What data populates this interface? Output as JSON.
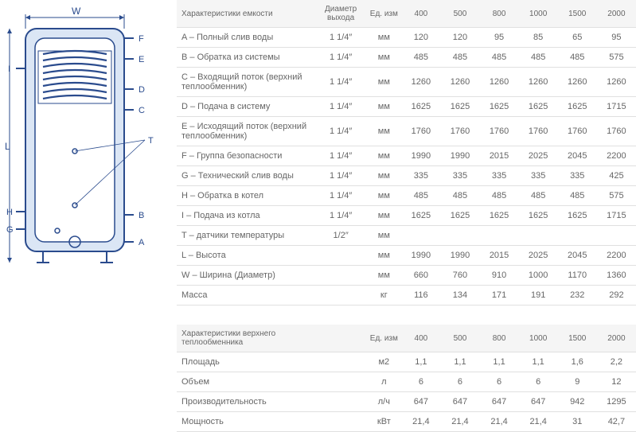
{
  "diagram": {
    "labels": {
      "W": "W",
      "L": "L",
      "F": "F",
      "E": "E",
      "D": "D",
      "C": "C",
      "T": "T",
      "B": "B",
      "A": "A",
      "H": "H",
      "G": "G",
      "I": "I"
    },
    "colors": {
      "stroke": "#2a4b8d",
      "fill_outer": "#dbe6f5",
      "fill_inner": "#ffffff",
      "coil": "#2a4b8d"
    }
  },
  "table1": {
    "headers": [
      "Характеристики емкости",
      "Диаметр выхода",
      "Ед. изм",
      "400",
      "500",
      "800",
      "1000",
      "1500",
      "2000"
    ],
    "rows": [
      [
        "A – Полный слив воды",
        "1 1/4″",
        "мм",
        "120",
        "120",
        "95",
        "85",
        "65",
        "95"
      ],
      [
        "B – Обратка из системы",
        "1 1/4″",
        "мм",
        "485",
        "485",
        "485",
        "485",
        "485",
        "575"
      ],
      [
        "C – Входящий поток (верхний теплообменник)",
        "1 1/4″",
        "мм",
        "1260",
        "1260",
        "1260",
        "1260",
        "1260",
        "1260"
      ],
      [
        "D – Подача в систему",
        "1 1/4″",
        "мм",
        "1625",
        "1625",
        "1625",
        "1625",
        "1625",
        "1715"
      ],
      [
        "E – Исходящий поток (верхний теплообменник)",
        "1 1/4″",
        "мм",
        "1760",
        "1760",
        "1760",
        "1760",
        "1760",
        "1760"
      ],
      [
        "F – Группа безопасности",
        "1 1/4″",
        "мм",
        "1990",
        "1990",
        "2015",
        "2025",
        "2045",
        "2200"
      ],
      [
        "G – Технический слив воды",
        "1 1/4″",
        "мм",
        "335",
        "335",
        "335",
        "335",
        "335",
        "425"
      ],
      [
        "H – Обратка в котел",
        "1 1/4″",
        "мм",
        "485",
        "485",
        "485",
        "485",
        "485",
        "575"
      ],
      [
        "I – Подача из котла",
        "1 1/4″",
        "мм",
        "1625",
        "1625",
        "1625",
        "1625",
        "1625",
        "1715"
      ],
      [
        "T – датчики температуры",
        "1/2″",
        "мм",
        "",
        "",
        "",
        "",
        "",
        ""
      ],
      [
        "L – Высота",
        "",
        "мм",
        "1990",
        "1990",
        "2015",
        "2025",
        "2045",
        "2200"
      ],
      [
        "W – Ширина (Диаметр)",
        "",
        "мм",
        "660",
        "760",
        "910",
        "1000",
        "1170",
        "1360"
      ],
      [
        "Масса",
        "",
        "кг",
        "116",
        "134",
        "171",
        "191",
        "232",
        "292"
      ]
    ]
  },
  "table2": {
    "headers": [
      "Характеристики верхнего теплообменника",
      "",
      "Ед. изм",
      "400",
      "500",
      "800",
      "1000",
      "1500",
      "2000"
    ],
    "rows": [
      [
        "Площадь",
        "",
        "м2",
        "1,1",
        "1,1",
        "1,1",
        "1,1",
        "1,6",
        "2,2"
      ],
      [
        "Объем",
        "",
        "л",
        "6",
        "6",
        "6",
        "6",
        "9",
        "12"
      ],
      [
        "Производительность",
        "",
        "л/ч",
        "647",
        "647",
        "647",
        "647",
        "942",
        "1295"
      ],
      [
        "Мощность",
        "",
        "кВт",
        "21,4",
        "21,4",
        "21,4",
        "21,4",
        "31",
        "42,7"
      ]
    ]
  },
  "col_widths": [
    "160px",
    "55px",
    "35px",
    "40px",
    "40px",
    "40px",
    "40px",
    "40px",
    "40px"
  ]
}
